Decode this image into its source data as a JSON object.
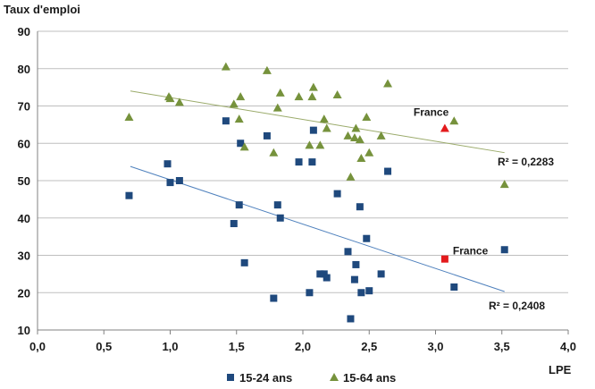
{
  "chart_data": {
    "type": "scatter",
    "ylabel": "Taux d'emploi",
    "xlabel": "LPE",
    "xlim": [
      0,
      4
    ],
    "ylim": [
      10,
      90
    ],
    "x_ticks": [
      "0,0",
      "0,5",
      "1,0",
      "1,5",
      "2,0",
      "2,5",
      "3,0",
      "3,5",
      "4,0"
    ],
    "y_ticks": [
      "10",
      "20",
      "30",
      "40",
      "50",
      "60",
      "70",
      "80",
      "90"
    ],
    "grid": true,
    "legend_position": "bottom",
    "series": [
      {
        "name": "15-24 ans",
        "marker": "square",
        "color": "#1f497d",
        "r2_label": "R² = 0,2408",
        "trend": {
          "x": [
            0.7,
            3.52
          ],
          "y": [
            53.8,
            20.3
          ]
        },
        "highlight": {
          "label": "France",
          "x": 3.07,
          "y": 29,
          "color": "#e31a1c"
        },
        "points": [
          [
            0.69,
            46
          ],
          [
            0.98,
            54.5
          ],
          [
            1.0,
            49.5
          ],
          [
            1.07,
            50
          ],
          [
            1.42,
            66
          ],
          [
            1.48,
            38.5
          ],
          [
            1.52,
            43.5
          ],
          [
            1.53,
            60
          ],
          [
            1.56,
            28
          ],
          [
            1.73,
            62
          ],
          [
            1.78,
            18.5
          ],
          [
            1.81,
            43.5
          ],
          [
            1.83,
            40
          ],
          [
            1.97,
            55
          ],
          [
            2.05,
            20
          ],
          [
            2.07,
            55
          ],
          [
            2.08,
            63.5
          ],
          [
            2.13,
            25
          ],
          [
            2.16,
            25
          ],
          [
            2.18,
            24
          ],
          [
            2.26,
            46.5
          ],
          [
            2.34,
            31
          ],
          [
            2.36,
            13
          ],
          [
            2.39,
            23.5
          ],
          [
            2.4,
            27.5
          ],
          [
            2.43,
            43
          ],
          [
            2.44,
            20
          ],
          [
            2.48,
            34.5
          ],
          [
            2.5,
            20.5
          ],
          [
            2.59,
            25
          ],
          [
            2.64,
            52.5
          ],
          [
            3.14,
            21.5
          ],
          [
            3.52,
            31.5
          ]
        ]
      },
      {
        "name": "15-64 ans",
        "marker": "triangle",
        "color": "#76923c",
        "r2_label": "R² = 0,2283",
        "trend": {
          "x": [
            0.7,
            3.52
          ],
          "y": [
            74,
            57.5
          ]
        },
        "highlight": {
          "label": "France",
          "x": 3.07,
          "y": 64,
          "color": "#e31a1c"
        },
        "points": [
          [
            0.69,
            67
          ],
          [
            0.99,
            72.5
          ],
          [
            1.0,
            72
          ],
          [
            1.07,
            71
          ],
          [
            1.42,
            80.5
          ],
          [
            1.48,
            70.5
          ],
          [
            1.52,
            66.5
          ],
          [
            1.53,
            72.5
          ],
          [
            1.56,
            59
          ],
          [
            1.73,
            79.5
          ],
          [
            1.78,
            57.5
          ],
          [
            1.81,
            69.5
          ],
          [
            1.83,
            73.5
          ],
          [
            1.97,
            72.5
          ],
          [
            2.05,
            59.5
          ],
          [
            2.07,
            72.5
          ],
          [
            2.08,
            75
          ],
          [
            2.13,
            59.5
          ],
          [
            2.16,
            66.5
          ],
          [
            2.18,
            64
          ],
          [
            2.26,
            73
          ],
          [
            2.34,
            62
          ],
          [
            2.36,
            51
          ],
          [
            2.39,
            61.5
          ],
          [
            2.4,
            64
          ],
          [
            2.43,
            61
          ],
          [
            2.44,
            56
          ],
          [
            2.48,
            67
          ],
          [
            2.5,
            57.5
          ],
          [
            2.59,
            62
          ],
          [
            2.64,
            76
          ],
          [
            3.14,
            66
          ],
          [
            3.52,
            49
          ]
        ]
      }
    ]
  }
}
